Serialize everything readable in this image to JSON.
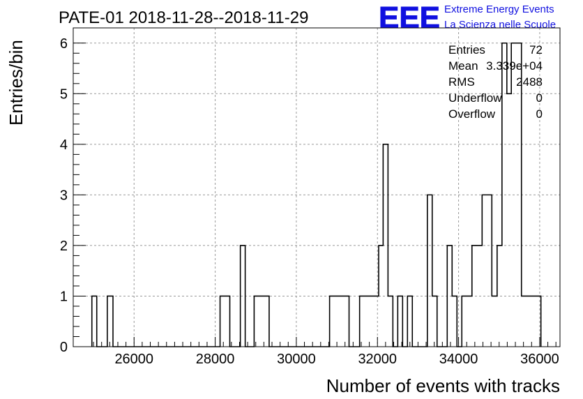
{
  "chart_data": {
    "type": "histogram",
    "title": "PATE-01 2018-11-28--2018-11-29",
    "xlabel": "Number of events with tracks",
    "ylabel": "Entries/bin",
    "xlim": [
      24500,
      36500
    ],
    "ylim": [
      0,
      6.3
    ],
    "grid": true,
    "bin_width": 120,
    "x_ticks": [
      26000,
      28000,
      30000,
      32000,
      34000,
      36000
    ],
    "y_ticks": [
      0,
      1,
      2,
      3,
      4,
      5,
      6
    ],
    "bins": [
      {
        "x0": 24960,
        "x1": 25080,
        "value": 1
      },
      {
        "x0": 25080,
        "x1": 25340,
        "value": 0
      },
      {
        "x0": 25340,
        "x1": 25480,
        "value": 1
      },
      {
        "x0": 25480,
        "x1": 28120,
        "value": 0
      },
      {
        "x0": 28120,
        "x1": 28360,
        "value": 1
      },
      {
        "x0": 28360,
        "x1": 28620,
        "value": 0
      },
      {
        "x0": 28620,
        "x1": 28740,
        "value": 2
      },
      {
        "x0": 28740,
        "x1": 28960,
        "value": 0
      },
      {
        "x0": 28960,
        "x1": 29330,
        "value": 1
      },
      {
        "x0": 29330,
        "x1": 30820,
        "value": 0
      },
      {
        "x0": 30820,
        "x1": 31300,
        "value": 1
      },
      {
        "x0": 31300,
        "x1": 31560,
        "value": 0
      },
      {
        "x0": 31560,
        "x1": 32030,
        "value": 1
      },
      {
        "x0": 32030,
        "x1": 32140,
        "value": 2
      },
      {
        "x0": 32140,
        "x1": 32260,
        "value": 4
      },
      {
        "x0": 32260,
        "x1": 32380,
        "value": 1
      },
      {
        "x0": 32380,
        "x1": 32500,
        "value": 0
      },
      {
        "x0": 32500,
        "x1": 32620,
        "value": 1
      },
      {
        "x0": 32620,
        "x1": 32740,
        "value": 0
      },
      {
        "x0": 32740,
        "x1": 32860,
        "value": 1
      },
      {
        "x0": 32860,
        "x1": 33230,
        "value": 0
      },
      {
        "x0": 33230,
        "x1": 33350,
        "value": 3
      },
      {
        "x0": 33350,
        "x1": 33470,
        "value": 1
      },
      {
        "x0": 33470,
        "x1": 33720,
        "value": 0
      },
      {
        "x0": 33720,
        "x1": 33840,
        "value": 2
      },
      {
        "x0": 33840,
        "x1": 33960,
        "value": 1
      },
      {
        "x0": 33960,
        "x1": 34080,
        "value": 0
      },
      {
        "x0": 34080,
        "x1": 34330,
        "value": 1
      },
      {
        "x0": 34330,
        "x1": 34580,
        "value": 2
      },
      {
        "x0": 34580,
        "x1": 34820,
        "value": 3
      },
      {
        "x0": 34820,
        "x1": 34950,
        "value": 1
      },
      {
        "x0": 34950,
        "x1": 35070,
        "value": 2
      },
      {
        "x0": 35070,
        "x1": 35190,
        "value": 6
      },
      {
        "x0": 35190,
        "x1": 35300,
        "value": 5
      },
      {
        "x0": 35300,
        "x1": 35550,
        "value": 6
      },
      {
        "x0": 35550,
        "x1": 36030,
        "value": 1
      }
    ],
    "stats": [
      {
        "label": "Entries",
        "value": "72"
      },
      {
        "label": "Mean",
        "value": "3.339e+04"
      },
      {
        "label": "RMS",
        "value": "2488"
      },
      {
        "label": "Underflow",
        "value": "0"
      },
      {
        "label": "Overflow",
        "value": "0"
      }
    ]
  },
  "logo": {
    "mark": "EEE",
    "line1": "Extreme Energy Events",
    "line2": "La Scienza nelle Scuole",
    "color": "#1010e0"
  }
}
